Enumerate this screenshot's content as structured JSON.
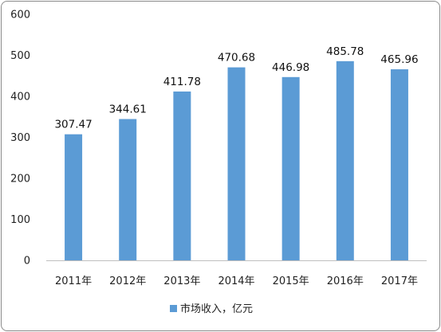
{
  "chart_data": {
    "type": "bar",
    "categories": [
      "2011年",
      "2012年",
      "2013年",
      "2014年",
      "2015年",
      "2016年",
      "2017年"
    ],
    "series": [
      {
        "name": "市场收入，亿元",
        "values": [
          307.47,
          344.61,
          411.78,
          470.68,
          446.98,
          485.78,
          465.96
        ],
        "labels": [
          "307.47",
          "344.61",
          "411.78",
          "470.68",
          "446.98",
          "485.78",
          "465.96"
        ],
        "color": "#5b9bd5"
      }
    ],
    "ylim": [
      0,
      600
    ],
    "yticks": [
      "0",
      "100",
      "200",
      "300",
      "400",
      "500",
      "600"
    ],
    "grid": false,
    "legend": "bottom"
  }
}
